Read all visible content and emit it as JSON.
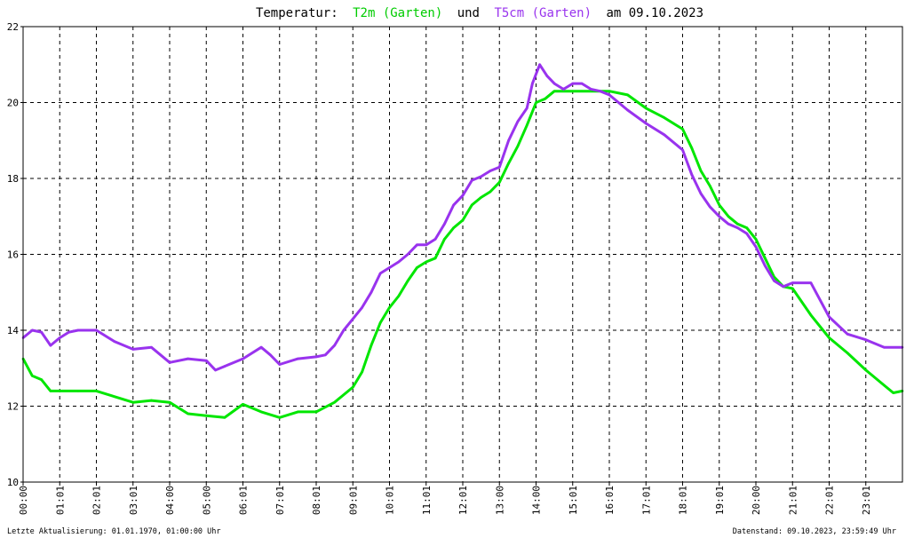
{
  "chart_data": {
    "type": "line",
    "title": {
      "prefix": "Temperatur:",
      "series1_label": "T2m (Garten)",
      "connector": "und",
      "series2_label": "T5cm (Garten)",
      "suffix": "am 09.10.2023"
    },
    "xlabel": "",
    "ylabel": "",
    "ylim": [
      10,
      22
    ],
    "xlim": [
      0,
      24
    ],
    "y_ticks": [
      "10",
      "12",
      "14",
      "16",
      "18",
      "20",
      "22"
    ],
    "x_ticks": [
      "00:00",
      "01:01",
      "02:01",
      "03:01",
      "04:00",
      "05:00",
      "06:01",
      "07:01",
      "08:01",
      "09:01",
      "10:01",
      "11:01",
      "12:01",
      "13:00",
      "14:00",
      "15:01",
      "16:01",
      "17:01",
      "18:01",
      "19:01",
      "20:00",
      "21:01",
      "22:01",
      "23:01"
    ],
    "grid": true,
    "series": [
      {
        "name": "T2m (Garten)",
        "color": "#00e600",
        "x": [
          0,
          0.25,
          0.5,
          0.75,
          1.0,
          1.5,
          2.0,
          2.5,
          3.0,
          3.5,
          4.0,
          4.5,
          5.0,
          5.5,
          6.0,
          6.5,
          7.0,
          7.5,
          8.0,
          8.5,
          9.0,
          9.25,
          9.5,
          9.75,
          10.0,
          10.25,
          10.5,
          10.75,
          11.0,
          11.25,
          11.5,
          11.75,
          12.0,
          12.25,
          12.5,
          12.75,
          13.0,
          13.25,
          13.5,
          13.75,
          14.0,
          14.25,
          14.5,
          14.75,
          15.0,
          15.25,
          15.5,
          15.75,
          16.0,
          16.5,
          17.0,
          17.5,
          18.0,
          18.25,
          18.5,
          18.75,
          19.0,
          19.25,
          19.5,
          19.75,
          20.0,
          20.25,
          20.5,
          20.75,
          21.0,
          21.5,
          22.0,
          22.5,
          23.0,
          23.5,
          23.75,
          24.0
        ],
        "values": [
          13.25,
          12.8,
          12.7,
          12.4,
          12.4,
          12.4,
          12.4,
          12.25,
          12.1,
          12.15,
          12.1,
          11.8,
          11.75,
          11.7,
          12.05,
          11.85,
          11.7,
          11.85,
          11.85,
          12.1,
          12.5,
          12.9,
          13.6,
          14.2,
          14.6,
          14.9,
          15.3,
          15.65,
          15.8,
          15.9,
          16.4,
          16.7,
          16.9,
          17.3,
          17.5,
          17.65,
          17.9,
          18.4,
          18.85,
          19.4,
          20.0,
          20.1,
          20.3,
          20.3,
          20.3,
          20.3,
          20.3,
          20.3,
          20.3,
          20.2,
          19.85,
          19.6,
          19.3,
          18.8,
          18.2,
          17.8,
          17.3,
          17.0,
          16.8,
          16.7,
          16.4,
          15.9,
          15.4,
          15.15,
          15.1,
          14.4,
          13.8,
          13.4,
          12.95,
          12.55,
          12.35,
          12.4
        ]
      },
      {
        "name": "T5cm (Garten)",
        "color": "#9933ee",
        "x": [
          0,
          0.25,
          0.5,
          0.75,
          1.0,
          1.25,
          1.5,
          2.0,
          2.5,
          3.0,
          3.5,
          4.0,
          4.5,
          5.0,
          5.25,
          5.5,
          6.0,
          6.5,
          6.75,
          7.0,
          7.5,
          8.0,
          8.25,
          8.5,
          8.75,
          9.0,
          9.25,
          9.5,
          9.75,
          10.0,
          10.25,
          10.5,
          10.75,
          11.0,
          11.25,
          11.5,
          11.75,
          12.0,
          12.25,
          12.5,
          12.75,
          13.0,
          13.25,
          13.5,
          13.75,
          13.9,
          14.1,
          14.3,
          14.5,
          14.75,
          15.0,
          15.25,
          15.5,
          15.75,
          16.0,
          16.5,
          17.0,
          17.5,
          18.0,
          18.25,
          18.5,
          18.75,
          19.0,
          19.25,
          19.5,
          19.75,
          20.0,
          20.25,
          20.5,
          20.75,
          21.0,
          21.5,
          22.0,
          22.5,
          23.0,
          23.5,
          24.0
        ],
        "values": [
          13.8,
          14.0,
          13.95,
          13.6,
          13.8,
          13.95,
          14.0,
          14.0,
          13.7,
          13.5,
          13.55,
          13.15,
          13.25,
          13.2,
          12.95,
          13.05,
          13.25,
          13.55,
          13.35,
          13.1,
          13.25,
          13.3,
          13.35,
          13.6,
          14.0,
          14.3,
          14.6,
          15.0,
          15.5,
          15.65,
          15.8,
          16.0,
          16.25,
          16.25,
          16.4,
          16.8,
          17.3,
          17.55,
          17.95,
          18.05,
          18.2,
          18.3,
          19.0,
          19.5,
          19.85,
          20.5,
          21.0,
          20.7,
          20.5,
          20.35,
          20.5,
          20.5,
          20.35,
          20.3,
          20.2,
          19.8,
          19.45,
          19.15,
          18.75,
          18.1,
          17.6,
          17.25,
          17.0,
          16.8,
          16.7,
          16.55,
          16.2,
          15.7,
          15.3,
          15.15,
          15.25,
          15.25,
          14.35,
          13.9,
          13.75,
          13.55,
          13.55
        ]
      }
    ],
    "background": "#ffffff",
    "grid_color": "#000000",
    "axis_color": "#000000"
  },
  "footer": {
    "left": "Letzte Aktualisierung: 01.01.1970, 01:00:00 Uhr",
    "right": "Datenstand: 09.10.2023, 23:59:49 Uhr"
  }
}
